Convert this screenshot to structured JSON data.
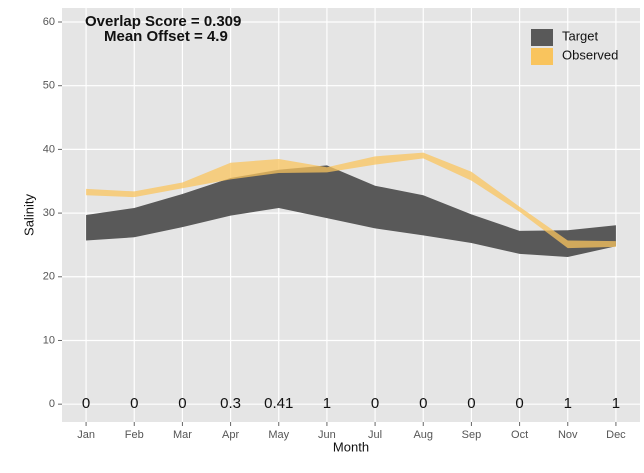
{
  "chart_data": {
    "type": "ribbon",
    "x_label": "Month",
    "y_label": "Salinity",
    "annotations": [
      "Overlap Score = 0.309",
      "Mean Offset = 4.9"
    ],
    "categories": [
      "Jan",
      "Feb",
      "Mar",
      "Apr",
      "May",
      "Jun",
      "Jul",
      "Aug",
      "Sep",
      "Oct",
      "Nov",
      "Dec"
    ],
    "monthly_overlap": [
      0,
      0,
      0,
      0.3,
      0.41,
      1,
      0,
      0,
      0,
      0,
      1,
      1
    ],
    "series": [
      {
        "name": "Target",
        "color": "#595959",
        "upper": [
          29.7,
          30.8,
          33,
          35.5,
          36.8,
          37.5,
          34.3,
          32.8,
          29.8,
          27.2,
          27.3,
          28.1
        ],
        "lower": [
          25.7,
          26.2,
          27.8,
          29.6,
          30.8,
          29.2,
          27.6,
          26.5,
          25.3,
          23.6,
          23.1,
          24.8
        ]
      },
      {
        "name": "Observed",
        "color": "#f9c45d",
        "upper": [
          33.8,
          33.4,
          34.8,
          37.9,
          38.5,
          37.2,
          38.9,
          39.5,
          36.5,
          31,
          25.7,
          25.6
        ],
        "lower": [
          32.8,
          32.5,
          33.9,
          35.3,
          36.3,
          36.4,
          37.6,
          38.6,
          35.1,
          30.2,
          24.5,
          24.7
        ]
      }
    ],
    "ylim": [
      -2.8,
      62.2
    ],
    "yticks": [
      0,
      10,
      20,
      30,
      40,
      50,
      60
    ],
    "grid": true,
    "legend": "top-right"
  }
}
